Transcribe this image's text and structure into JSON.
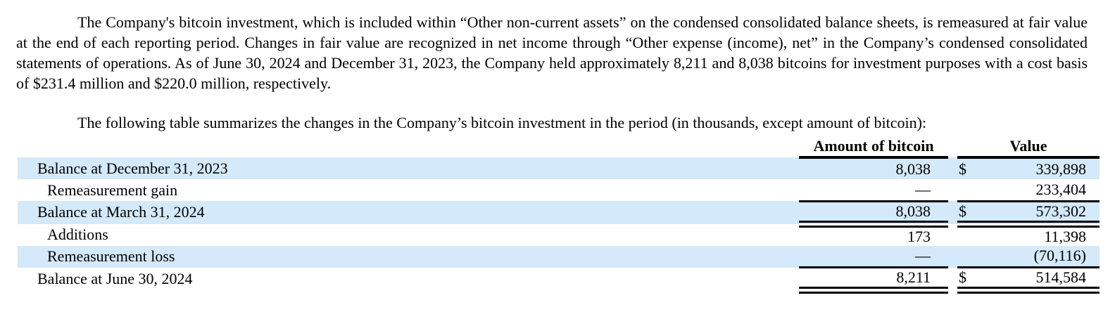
{
  "page": {
    "background_color": "#ffffff",
    "text_color": "#000000",
    "stripe_color": "#D4E9F9"
  },
  "paragraphs": {
    "intro": "The Company's bitcoin investment, which is included within “Other non-current assets” on the condensed consolidated balance sheets, is remeasured at fair value at the end of each reporting period. Changes in fair value are recognized in net income through “Other expense (income), net” in the Company’s condensed consolidated statements of operations. As of June 30, 2024 and December 31, 2023, the Company held approximately 8,211 and 8,038 bitcoins for investment purposes with a cost basis of $231.4 million and $220.0 million, respectively.",
    "table_caption": "The following table summarizes the changes in the Company’s bitcoin investment in the period (in thousands, except amount of bitcoin):"
  },
  "table": {
    "headers": {
      "amount": "Amount of bitcoin",
      "value": "Value"
    },
    "rows": [
      {
        "label": "Balance at December 31, 2023",
        "amount": "8,038",
        "currency": "$",
        "value": "339,898"
      },
      {
        "label": "Remeasurement gain",
        "amount": "—",
        "currency": "",
        "value": "233,404"
      },
      {
        "label": "Balance at March 31, 2024",
        "amount": "8,038",
        "currency": "$",
        "value": "573,302"
      },
      {
        "label": "Additions",
        "amount": "173",
        "currency": "",
        "value": "11,398"
      },
      {
        "label": "Remeasurement loss",
        "amount": "—",
        "currency": "",
        "value": "(70,116)"
      },
      {
        "label": "Balance at June 30, 2024",
        "amount": "8,211",
        "currency": "$",
        "value": "514,584"
      }
    ]
  }
}
